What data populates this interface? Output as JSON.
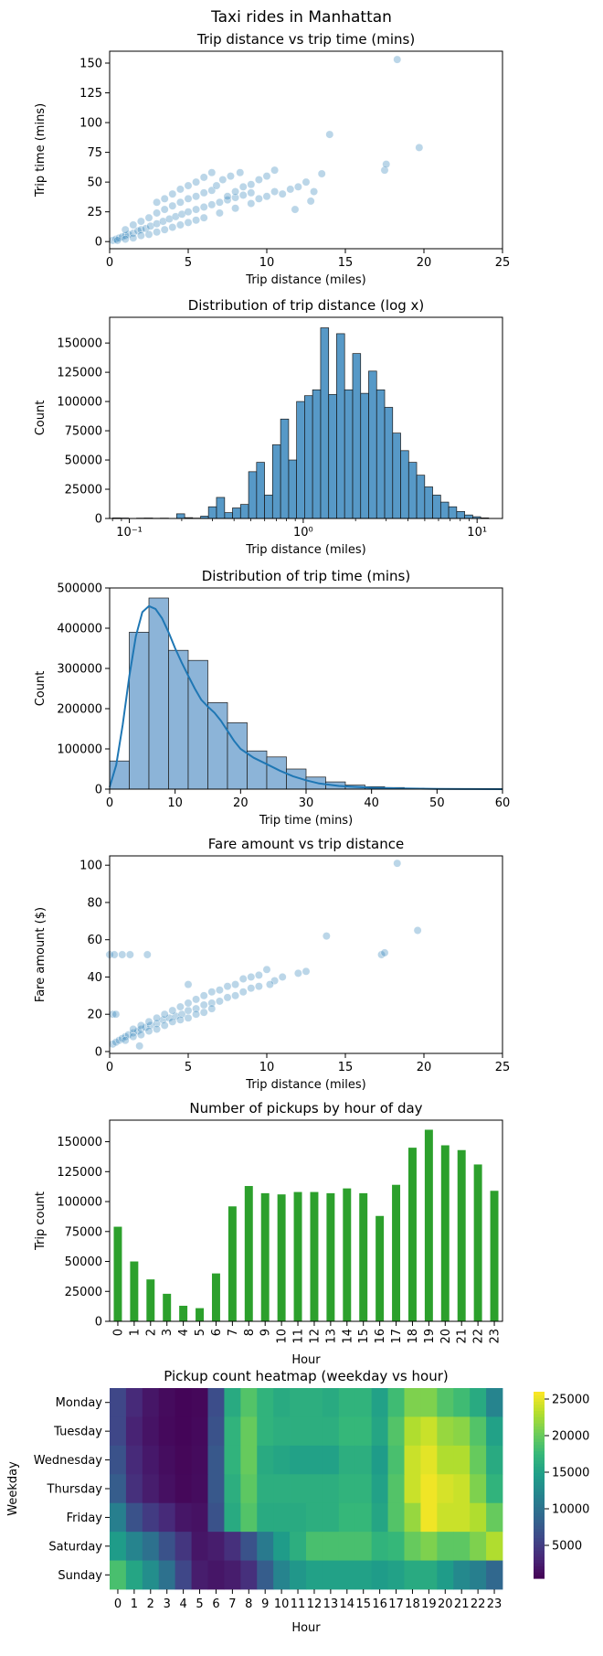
{
  "figure_title": "Taxi rides in Manhattan",
  "colors": {
    "scatter": "#1f77b4",
    "hist_fill": "#1f77b4",
    "hist_fill_soft": "#8cb4d8",
    "kde_line": "#1f77b4",
    "bar_green": "#2ca02c",
    "frame": "#000000"
  },
  "chart_data": [
    {
      "type": "scatter",
      "title": "Trip distance vs trip time (mins)",
      "xlabel": "Trip distance (miles)",
      "ylabel": "Trip time (mins)",
      "xlim": [
        0,
        25
      ],
      "ylim": [
        -6,
        160
      ],
      "xticks": [
        0,
        5,
        10,
        15,
        20,
        25
      ],
      "yticks": [
        0,
        25,
        50,
        75,
        100,
        125,
        150
      ],
      "points": [
        [
          0.2,
          1
        ],
        [
          0.4,
          2
        ],
        [
          0.6,
          3
        ],
        [
          0.8,
          4
        ],
        [
          1.0,
          5
        ],
        [
          1.2,
          6
        ],
        [
          1.5,
          7
        ],
        [
          1.8,
          9
        ],
        [
          2.0,
          10
        ],
        [
          2.3,
          11
        ],
        [
          2.6,
          13
        ],
        [
          3.0,
          15
        ],
        [
          3.4,
          17
        ],
        [
          3.8,
          19
        ],
        [
          4.2,
          21
        ],
        [
          4.6,
          23
        ],
        [
          5.0,
          25
        ],
        [
          5.5,
          27
        ],
        [
          6.0,
          29
        ],
        [
          6.5,
          31
        ],
        [
          7.0,
          33
        ],
        [
          7.5,
          35
        ],
        [
          8.0,
          37
        ],
        [
          8.5,
          39
        ],
        [
          9.0,
          41
        ],
        [
          1.0,
          10
        ],
        [
          1.5,
          14
        ],
        [
          2.0,
          17
        ],
        [
          2.5,
          20
        ],
        [
          3.0,
          24
        ],
        [
          3.5,
          27
        ],
        [
          4.0,
          30
        ],
        [
          4.5,
          33
        ],
        [
          5.0,
          36
        ],
        [
          5.5,
          38
        ],
        [
          6.0,
          41
        ],
        [
          6.5,
          43
        ],
        [
          0.5,
          1
        ],
        [
          1.0,
          2
        ],
        [
          1.5,
          3
        ],
        [
          2.0,
          5
        ],
        [
          2.5,
          6
        ],
        [
          3.0,
          8
        ],
        [
          3.5,
          10
        ],
        [
          4.0,
          12
        ],
        [
          4.5,
          14
        ],
        [
          5.0,
          16
        ],
        [
          5.5,
          18
        ],
        [
          6.0,
          20
        ],
        [
          7.0,
          24
        ],
        [
          8.0,
          28
        ],
        [
          9.0,
          32
        ],
        [
          4.0,
          40
        ],
        [
          4.5,
          44
        ],
        [
          5.0,
          47
        ],
        [
          5.5,
          50
        ],
        [
          6.0,
          54
        ],
        [
          6.5,
          58
        ],
        [
          3.5,
          36
        ],
        [
          3.0,
          33
        ],
        [
          7.5,
          38
        ],
        [
          8.0,
          42
        ],
        [
          8.5,
          46
        ],
        [
          9.0,
          48
        ],
        [
          9.5,
          52
        ],
        [
          10.0,
          55
        ],
        [
          10.5,
          60
        ],
        [
          11.0,
          40
        ],
        [
          11.5,
          44
        ],
        [
          12.0,
          46
        ],
        [
          12.5,
          50
        ],
        [
          13.0,
          42
        ],
        [
          13.5,
          57
        ],
        [
          14.0,
          90
        ],
        [
          17.5,
          60
        ],
        [
          17.6,
          65
        ],
        [
          18.3,
          153
        ],
        [
          19.7,
          79
        ],
        [
          9.5,
          36
        ],
        [
          10.0,
          38
        ],
        [
          10.5,
          42
        ],
        [
          6.8,
          47
        ],
        [
          7.2,
          52
        ],
        [
          7.7,
          55
        ],
        [
          8.3,
          58
        ],
        [
          12.8,
          34
        ],
        [
          11.8,
          27
        ]
      ]
    },
    {
      "type": "bar",
      "title": "Distribution of trip distance (log x)",
      "xlabel": "Trip distance (miles)",
      "ylabel": "Count",
      "xscale": "log",
      "xlim": [
        0.077,
        14
      ],
      "ylim": [
        0,
        172000
      ],
      "xticks": [
        0.1,
        1,
        10
      ],
      "xticklabels": [
        "10⁻¹",
        "10⁰",
        "10¹"
      ],
      "yticks": [
        0,
        25000,
        50000,
        75000,
        100000,
        125000,
        150000
      ],
      "bin_edges": [
        0.08,
        0.089,
        0.099,
        0.11,
        0.122,
        0.136,
        0.151,
        0.168,
        0.187,
        0.208,
        0.231,
        0.257,
        0.285,
        0.317,
        0.353,
        0.392,
        0.436,
        0.485,
        0.539,
        0.599,
        0.666,
        0.741,
        0.824,
        0.916,
        1.018,
        1.132,
        1.259,
        1.4,
        1.556,
        1.73,
        1.924,
        2.139,
        2.378,
        2.644,
        2.94,
        3.268,
        3.634,
        4.04,
        4.491,
        4.994,
        5.552,
        6.173,
        6.863,
        7.63,
        8.483,
        9.432,
        10.486,
        11.66
      ],
      "values": [
        500,
        400,
        0,
        300,
        400,
        200,
        300,
        0,
        4000,
        700,
        300,
        2000,
        10000,
        18000,
        5000,
        9000,
        12000,
        40000,
        48000,
        20000,
        63000,
        85000,
        50000,
        100000,
        105000,
        110000,
        163000,
        106000,
        158000,
        110000,
        141000,
        107000,
        126000,
        110000,
        95000,
        73000,
        58000,
        48000,
        37000,
        27000,
        20000,
        14000,
        10000,
        6000,
        3000,
        1500,
        500
      ]
    },
    {
      "type": "bar",
      "title": "Distribution of trip time (mins)",
      "xlabel": "Trip time (mins)",
      "ylabel": "Count",
      "xlim": [
        0,
        60
      ],
      "ylim": [
        0,
        500000
      ],
      "xticks": [
        0,
        10,
        20,
        30,
        40,
        50,
        60
      ],
      "yticks": [
        0,
        100000,
        200000,
        300000,
        400000,
        500000
      ],
      "bin_edges": [
        0,
        3,
        6,
        9,
        12,
        15,
        18,
        21,
        24,
        27,
        30,
        33,
        36,
        39,
        42,
        45,
        48,
        51,
        54,
        57,
        60
      ],
      "values": [
        70000,
        390000,
        475000,
        345000,
        320000,
        215000,
        165000,
        95000,
        80000,
        50000,
        30000,
        18000,
        10000,
        6000,
        4000,
        2500,
        1500,
        1000,
        500,
        300
      ],
      "kde": [
        [
          0,
          5000
        ],
        [
          1,
          60000
        ],
        [
          2,
          160000
        ],
        [
          3,
          280000
        ],
        [
          4,
          380000
        ],
        [
          5,
          440000
        ],
        [
          6,
          455000
        ],
        [
          7,
          448000
        ],
        [
          8,
          425000
        ],
        [
          9,
          390000
        ],
        [
          10,
          350000
        ],
        [
          11,
          315000
        ],
        [
          12,
          282000
        ],
        [
          13,
          250000
        ],
        [
          14,
          222000
        ],
        [
          15,
          205000
        ],
        [
          16,
          190000
        ],
        [
          17,
          170000
        ],
        [
          18,
          145000
        ],
        [
          19,
          120000
        ],
        [
          20,
          100000
        ],
        [
          22,
          78000
        ],
        [
          24,
          62000
        ],
        [
          26,
          46000
        ],
        [
          28,
          32000
        ],
        [
          30,
          22000
        ],
        [
          32,
          14000
        ],
        [
          35,
          8000
        ],
        [
          40,
          3500
        ],
        [
          45,
          1500
        ],
        [
          50,
          700
        ],
        [
          55,
          300
        ],
        [
          60,
          100
        ]
      ]
    },
    {
      "type": "scatter",
      "title": "Fare amount vs trip distance",
      "xlabel": "Trip distance (miles)",
      "ylabel": "Fare amount ($)",
      "xlim": [
        0,
        25
      ],
      "ylim": [
        -1,
        105
      ],
      "xticks": [
        0,
        5,
        10,
        15,
        20,
        25
      ],
      "yticks": [
        0,
        20,
        40,
        60,
        80,
        100
      ],
      "points": [
        [
          0.2,
          4
        ],
        [
          0.4,
          5
        ],
        [
          0.6,
          6
        ],
        [
          0.8,
          7
        ],
        [
          1.0,
          8
        ],
        [
          1.2,
          9
        ],
        [
          1.5,
          10
        ],
        [
          1.8,
          11
        ],
        [
          2.0,
          12
        ],
        [
          2.3,
          13
        ],
        [
          2.6,
          14
        ],
        [
          3.0,
          15
        ],
        [
          3.4,
          17
        ],
        [
          3.8,
          18
        ],
        [
          4.2,
          19
        ],
        [
          4.6,
          20
        ],
        [
          5.0,
          22
        ],
        [
          5.5,
          23
        ],
        [
          6.0,
          25
        ],
        [
          6.5,
          26
        ],
        [
          7.0,
          27
        ],
        [
          7.5,
          29
        ],
        [
          8.0,
          30
        ],
        [
          8.5,
          32
        ],
        [
          9.0,
          34
        ],
        [
          1.0,
          6
        ],
        [
          1.5,
          8
        ],
        [
          2.0,
          9
        ],
        [
          2.5,
          11
        ],
        [
          3.0,
          12
        ],
        [
          3.5,
          14
        ],
        [
          4.0,
          16
        ],
        [
          4.5,
          17
        ],
        [
          5.0,
          18
        ],
        [
          5.5,
          20
        ],
        [
          6.0,
          21
        ],
        [
          6.5,
          23
        ],
        [
          1.5,
          12
        ],
        [
          2.0,
          14
        ],
        [
          2.5,
          16
        ],
        [
          3.0,
          18
        ],
        [
          3.5,
          20
        ],
        [
          4.0,
          22
        ],
        [
          4.5,
          24
        ],
        [
          5.0,
          26
        ],
        [
          5.5,
          28
        ],
        [
          6.0,
          30
        ],
        [
          6.5,
          32
        ],
        [
          7.0,
          33
        ],
        [
          7.5,
          35
        ],
        [
          8.0,
          36
        ],
        [
          8.5,
          39
        ],
        [
          9.0,
          40
        ],
        [
          9.5,
          41
        ],
        [
          10.0,
          44
        ],
        [
          10.5,
          38
        ],
        [
          11.0,
          40
        ],
        [
          12.0,
          42
        ],
        [
          12.5,
          43
        ],
        [
          13.8,
          62
        ],
        [
          17.3,
          52
        ],
        [
          17.5,
          53
        ],
        [
          18.3,
          101
        ],
        [
          19.6,
          65
        ],
        [
          0.0,
          52
        ],
        [
          0.3,
          52
        ],
        [
          0.8,
          52
        ],
        [
          1.3,
          52
        ],
        [
          2.4,
          52
        ],
        [
          0.2,
          20
        ],
        [
          0.4,
          20
        ],
        [
          1.9,
          3
        ],
        [
          5.0,
          36
        ],
        [
          9.5,
          35
        ],
        [
          10.2,
          36
        ]
      ]
    },
    {
      "type": "bar",
      "title": "Number of pickups by hour of day",
      "xlabel": "Hour",
      "ylabel": "Trip count",
      "ylim": [
        0,
        168000
      ],
      "yticks": [
        0,
        25000,
        50000,
        75000,
        100000,
        125000,
        150000
      ],
      "categories": [
        "0",
        "1",
        "2",
        "3",
        "4",
        "5",
        "6",
        "7",
        "8",
        "9",
        "10",
        "11",
        "12",
        "13",
        "14",
        "15",
        "16",
        "17",
        "18",
        "19",
        "20",
        "21",
        "22",
        "23"
      ],
      "values": [
        79000,
        50000,
        35000,
        23000,
        13000,
        11000,
        40000,
        96000,
        113000,
        107000,
        106000,
        108000,
        108000,
        107000,
        111000,
        107000,
        88000,
        114000,
        145000,
        160000,
        147000,
        143000,
        131000,
        109000
      ]
    },
    {
      "type": "heatmap",
      "title": "Pickup count heatmap (weekday vs hour)",
      "xlabel": "Hour",
      "ylabel": "Weekday",
      "colormap": "viridis",
      "vmin": 500,
      "vmax": 26000,
      "colorbar_ticks": [
        5000,
        10000,
        15000,
        20000,
        25000
      ],
      "x": [
        "0",
        "1",
        "2",
        "3",
        "4",
        "5",
        "6",
        "7",
        "8",
        "9",
        "10",
        "11",
        "12",
        "13",
        "14",
        "15",
        "16",
        "17",
        "18",
        "19",
        "20",
        "21",
        "22",
        "23"
      ],
      "y": [
        "Monday",
        "Tuesday",
        "Wednesday",
        "Thursday",
        "Friday",
        "Saturday",
        "Sunday"
      ],
      "values": [
        [
          6000,
          3500,
          2000,
          1200,
          800,
          1000,
          6500,
          16000,
          19000,
          17000,
          16000,
          16500,
          16500,
          16000,
          17000,
          17000,
          15000,
          18000,
          21000,
          21000,
          19000,
          18000,
          16000,
          12000
        ],
        [
          6000,
          3000,
          1800,
          1100,
          800,
          1100,
          7000,
          17000,
          20000,
          17000,
          16500,
          16500,
          16500,
          16500,
          17500,
          17500,
          15500,
          19000,
          23000,
          24000,
          22000,
          21500,
          19000,
          15000
        ],
        [
          7000,
          3500,
          2200,
          1400,
          900,
          1200,
          7500,
          17000,
          20000,
          16000,
          15500,
          15000,
          15000,
          15000,
          16500,
          16500,
          14500,
          18500,
          24000,
          25000,
          23000,
          23000,
          20000,
          16000
        ],
        [
          8000,
          4000,
          2500,
          1600,
          1000,
          1300,
          7500,
          16500,
          19500,
          16500,
          16500,
          16500,
          16500,
          16500,
          17000,
          17000,
          15000,
          19000,
          24000,
          25500,
          24500,
          24000,
          21000,
          17000
        ],
        [
          11500,
          7000,
          5000,
          3500,
          2000,
          1700,
          7000,
          16000,
          19000,
          16000,
          16000,
          16000,
          16500,
          16500,
          17500,
          17500,
          15500,
          19000,
          22000,
          25500,
          24000,
          24000,
          23000,
          20000
        ],
        [
          14500,
          12000,
          10000,
          7000,
          4500,
          2000,
          2500,
          4000,
          7000,
          11000,
          14500,
          16500,
          18500,
          18500,
          18500,
          18500,
          17000,
          17500,
          20000,
          21000,
          19500,
          19500,
          21000,
          23000
        ],
        [
          18500,
          15500,
          13000,
          10000,
          6000,
          2500,
          2000,
          2500,
          4000,
          8000,
          12000,
          14000,
          15000,
          15000,
          15000,
          15000,
          14500,
          15000,
          16000,
          16000,
          14500,
          12500,
          11500,
          9000
        ]
      ]
    }
  ]
}
